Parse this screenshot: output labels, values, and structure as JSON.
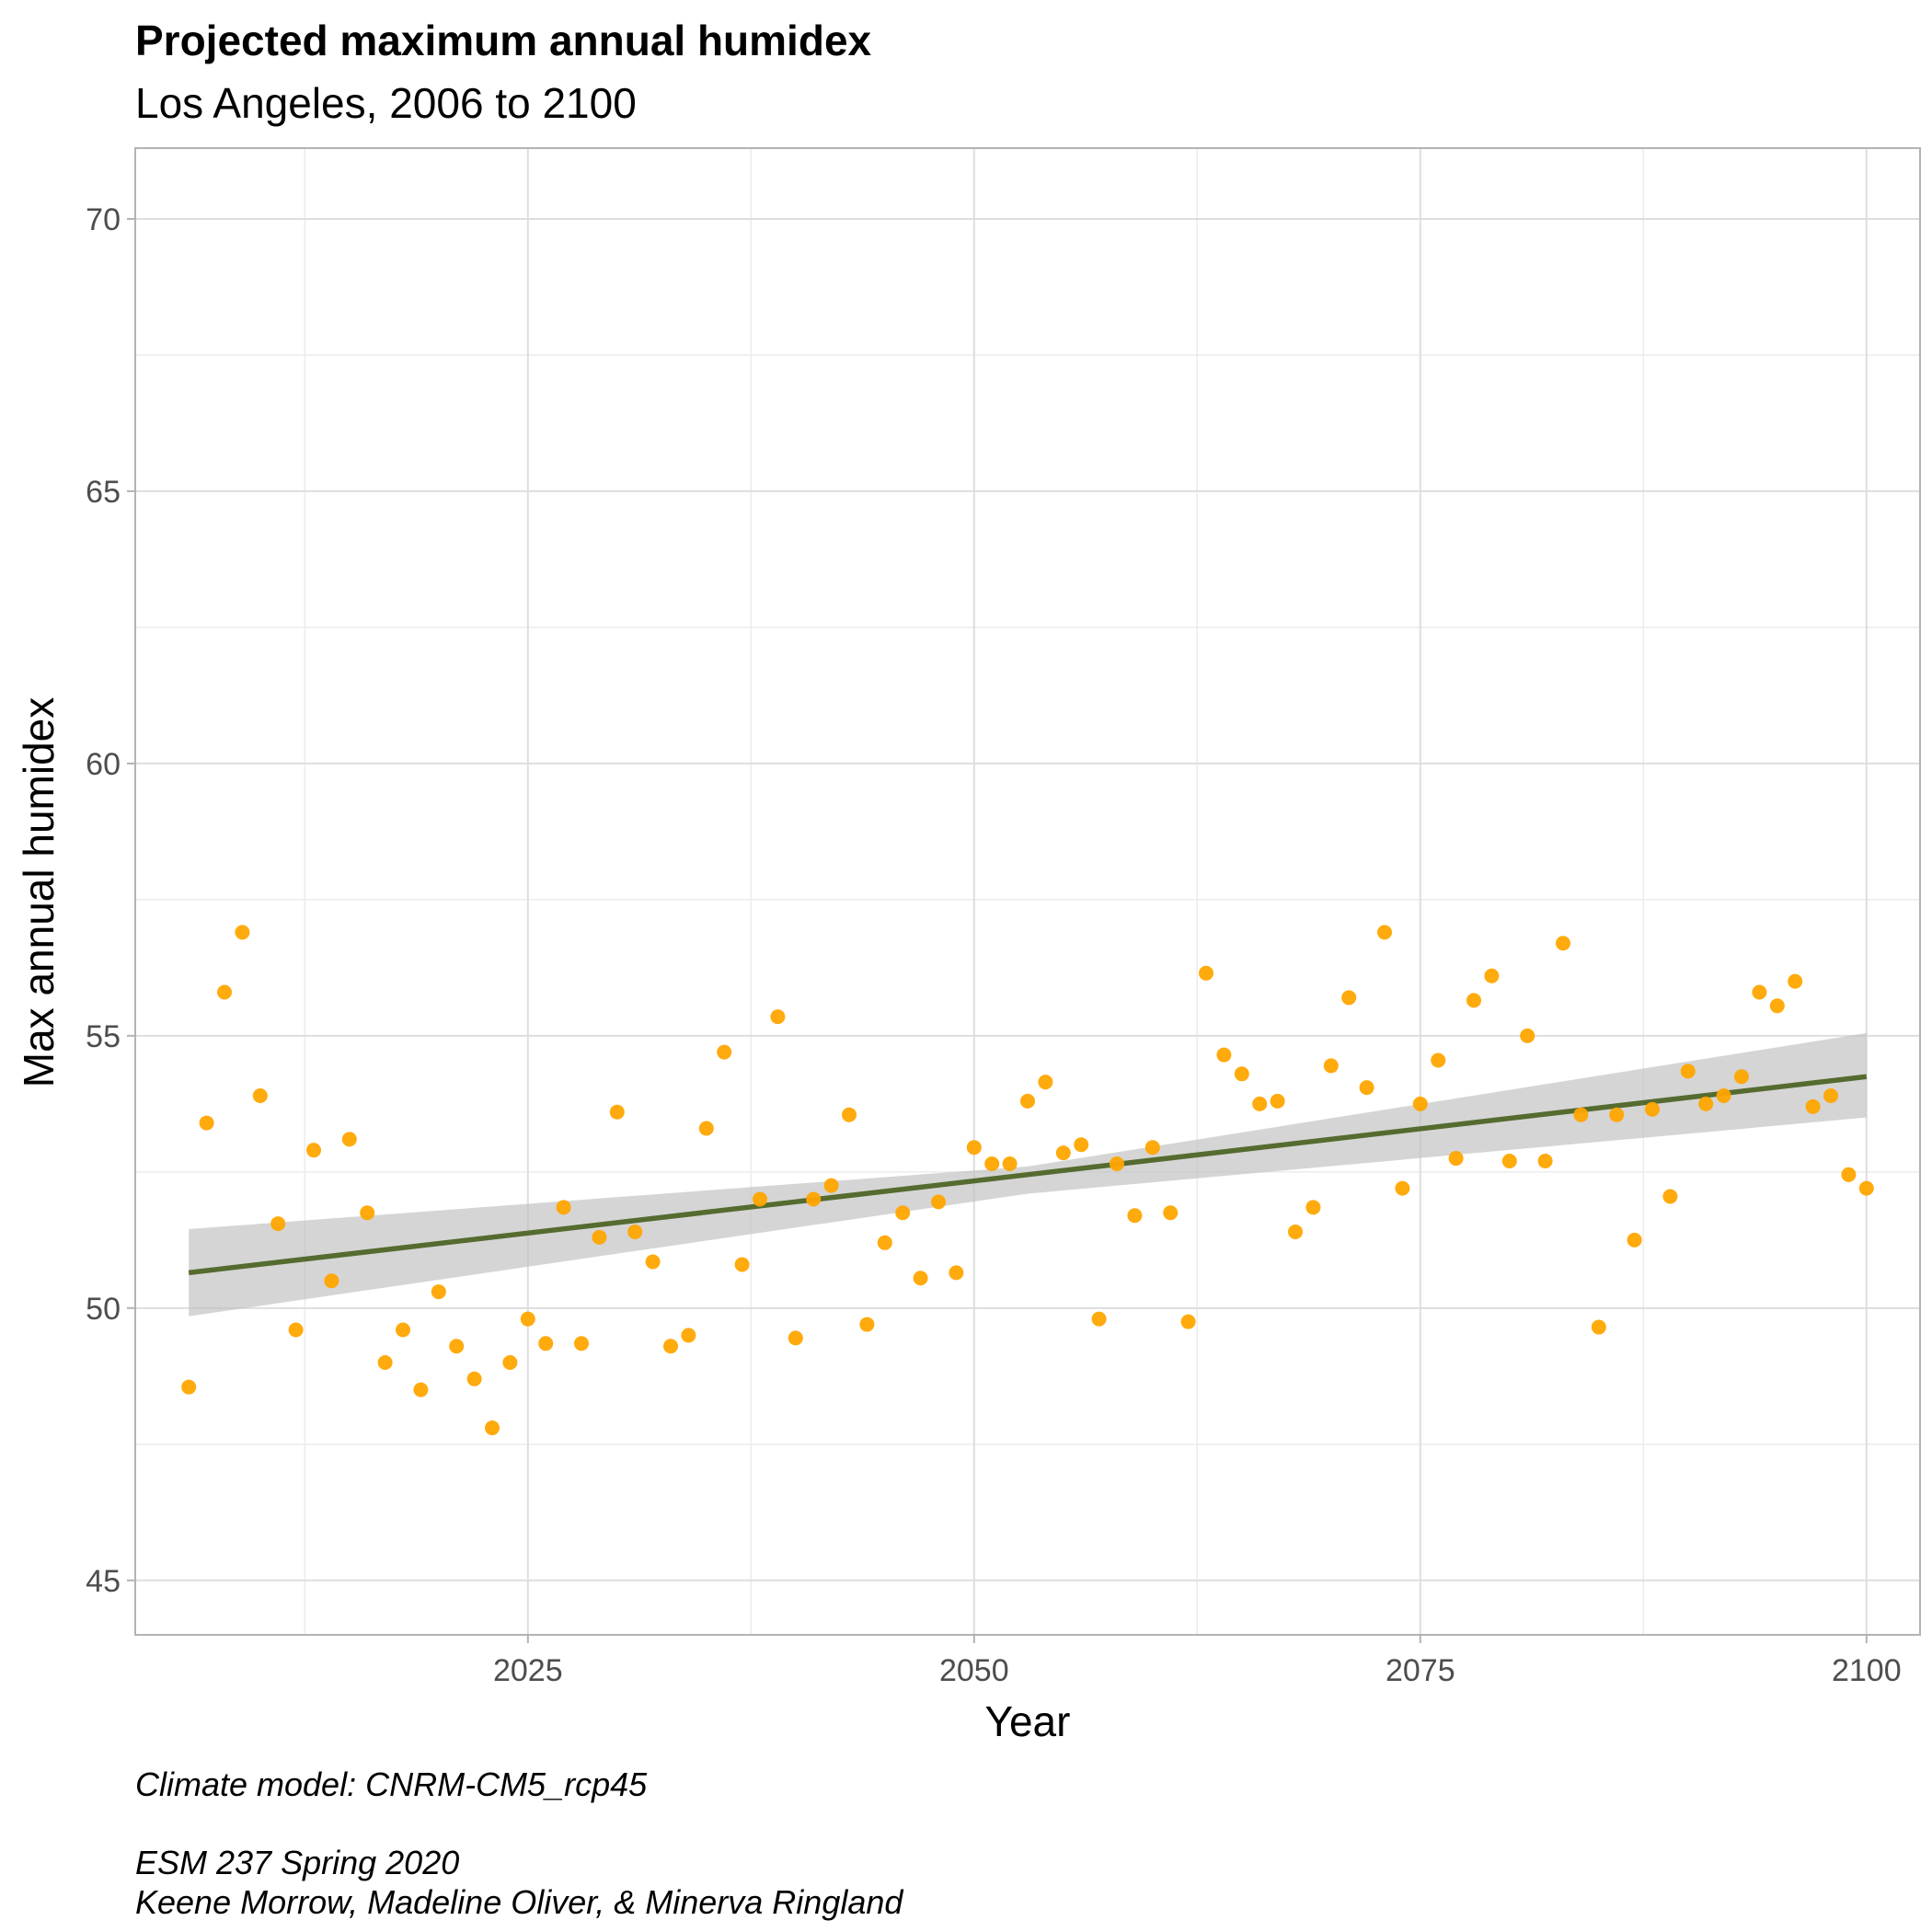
{
  "chart_data": {
    "type": "scatter",
    "title": "Projected maximum annual humidex",
    "subtitle": "Los Angeles, 2006 to 2100",
    "xlabel": "Year",
    "ylabel": "Max annual humidex",
    "xlim": [
      2003,
      2103
    ],
    "ylim": [
      44,
      71.3
    ],
    "x_ticks": [
      2025,
      2050,
      2075,
      2100
    ],
    "y_ticks": [
      45,
      50,
      55,
      60,
      65,
      70
    ],
    "grid": true,
    "point_color": "#FFA500",
    "trend_color": "#556B2F",
    "band_color": "#BEBEBE",
    "points": {
      "x": [
        2006,
        2007,
        2008,
        2009,
        2010,
        2011,
        2012,
        2013,
        2014,
        2015,
        2016,
        2017,
        2018,
        2019,
        2020,
        2021,
        2022,
        2023,
        2024,
        2025,
        2026,
        2027,
        2028,
        2029,
        2030,
        2031,
        2032,
        2033,
        2034,
        2035,
        2036,
        2037,
        2038,
        2039,
        2040,
        2041,
        2042,
        2043,
        2044,
        2045,
        2046,
        2047,
        2048,
        2049,
        2050,
        2051,
        2052,
        2053,
        2054,
        2055,
        2056,
        2057,
        2058,
        2059,
        2060,
        2061,
        2062,
        2063,
        2064,
        2065,
        2066,
        2067,
        2068,
        2069,
        2070,
        2071,
        2072,
        2073,
        2074,
        2075,
        2076,
        2077,
        2078,
        2079,
        2080,
        2081,
        2082,
        2083,
        2084,
        2085,
        2086,
        2087,
        2088,
        2089,
        2090,
        2091,
        2092,
        2093,
        2094,
        2095,
        2096,
        2097,
        2098,
        2099,
        2100
      ],
      "y": [
        48.55,
        53.4,
        55.8,
        56.9,
        53.9,
        51.55,
        49.6,
        52.9,
        50.5,
        53.1,
        51.75,
        49.0,
        49.6,
        48.5,
        50.3,
        49.3,
        48.7,
        47.8,
        49.0,
        49.8,
        49.35,
        51.85,
        49.35,
        51.3,
        53.6,
        51.4,
        50.85,
        49.3,
        49.5,
        53.3,
        54.7,
        50.8,
        52.0,
        55.35,
        49.45,
        52.0,
        52.25,
        53.55,
        49.7,
        51.2,
        51.75,
        50.55,
        51.95,
        50.65,
        52.95,
        52.65,
        52.65,
        53.8,
        54.15,
        52.85,
        53.0,
        49.8,
        52.65,
        51.7,
        52.95,
        51.75,
        49.75,
        56.15,
        54.65,
        54.3,
        53.75,
        53.8,
        51.4,
        51.85,
        54.45,
        55.7,
        54.05,
        56.9,
        52.2,
        53.75,
        54.55,
        52.75,
        55.65,
        56.1,
        52.7,
        55.0,
        52.7,
        56.7,
        53.55,
        49.65,
        53.55,
        51.25,
        53.65,
        52.05,
        54.35,
        53.75,
        53.9,
        54.25,
        55.8,
        55.55,
        56.0,
        53.7,
        53.9,
        52.45,
        52.2
      ]
    },
    "trend": {
      "x": [
        2006,
        2100
      ],
      "y": [
        50.65,
        54.25
      ]
    },
    "band": {
      "x": [
        2006,
        2053,
        2100
      ],
      "lower": [
        49.85,
        52.1,
        53.5
      ],
      "upper": [
        51.45,
        52.6,
        55.05
      ]
    }
  },
  "caption": {
    "line1": "Climate model:  CNRM-CM5_rcp45",
    "line2": "ESM 237 Spring 2020",
    "line3": "Keene Morrow, Madeline Oliver, & Minerva Ringland"
  }
}
